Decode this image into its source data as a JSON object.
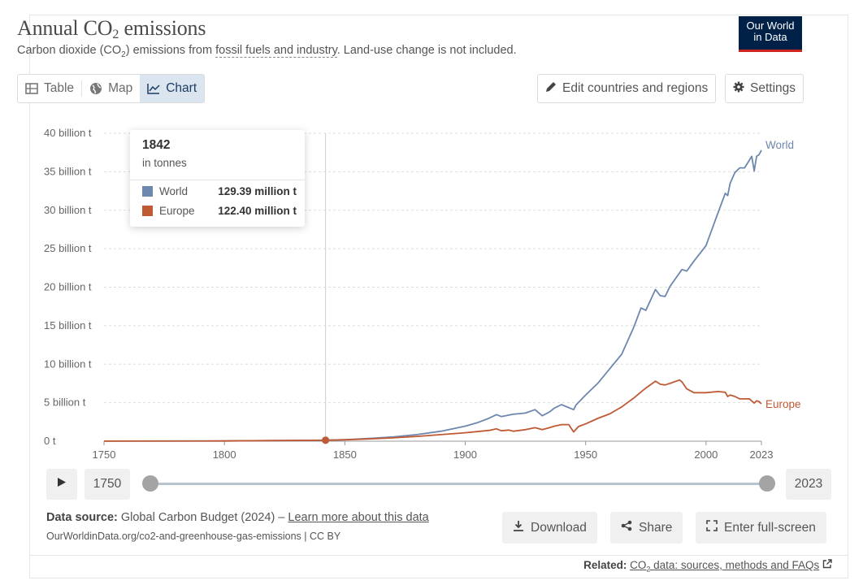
{
  "header": {
    "title_main": "Annual CO",
    "title_sub": "2",
    "title_end": " emissions",
    "subtitle_pre": "Carbon dioxide (CO",
    "subtitle_sub": "2",
    "subtitle_mid": ") emissions from ",
    "subtitle_link": "fossil fuels and industry",
    "subtitle_post": ". Land-use change is not included.",
    "logo_line1": "Our World",
    "logo_line2": "in Data"
  },
  "toolbar": {
    "tabs": [
      {
        "label": "Table",
        "icon": "table-icon"
      },
      {
        "label": "Map",
        "icon": "globe-icon"
      },
      {
        "label": "Chart",
        "icon": "line-chart-icon",
        "active": true
      }
    ],
    "edit_label": "Edit countries and regions",
    "settings_label": "Settings"
  },
  "tooltip": {
    "year": "1842",
    "unit": "in tonnes",
    "rows": [
      {
        "name": "World",
        "value": "129.39 million t",
        "color": "#6d87ad"
      },
      {
        "name": "Europe",
        "value": "122.40 million t",
        "color": "#c05a35"
      }
    ]
  },
  "timeline": {
    "play_icon": "play-icon",
    "start": "1750",
    "end": "2023"
  },
  "footer": {
    "source_label": "Data source:",
    "source_text": " Global Carbon Budget (2024) – ",
    "source_link": "Learn more about this data",
    "url": "OurWorldinData.org/co2-and-greenhouse-gas-emissions | CC BY",
    "download_label": "Download",
    "share_label": "Share",
    "fullscreen_label": "Enter full-screen",
    "related_label": "Related:",
    "related_pre": "CO",
    "related_sub": "2",
    "related_link": " data: sources, methods and FAQs"
  },
  "chart_data": {
    "type": "line",
    "title": "Annual CO₂ emissions",
    "ylabel": "",
    "xlabel": "",
    "xlim": [
      1750,
      2023
    ],
    "ylim": [
      0,
      40000000000
    ],
    "x_ticks": [
      "1750",
      "1800",
      "1850",
      "1900",
      "1950",
      "2000",
      "2023"
    ],
    "y_ticks": [
      "0 t",
      "5 billion t",
      "10 billion t",
      "15 billion t",
      "20 billion t",
      "25 billion t",
      "30 billion t",
      "35 billion t",
      "40 billion t"
    ],
    "y_tick_values": [
      0,
      5000000000,
      10000000000,
      15000000000,
      20000000000,
      25000000000,
      30000000000,
      35000000000,
      40000000000
    ],
    "grid": true,
    "hover_year": 1842,
    "series": [
      {
        "name": "World",
        "color": "#6d87ad",
        "points": [
          [
            1750,
            9000000
          ],
          [
            1800,
            28000000
          ],
          [
            1842,
            129390000
          ],
          [
            1850,
            200000000
          ],
          [
            1860,
            350000000
          ],
          [
            1870,
            550000000
          ],
          [
            1880,
            850000000
          ],
          [
            1890,
            1300000000
          ],
          [
            1900,
            1950000000
          ],
          [
            1905,
            2400000000
          ],
          [
            1910,
            3000000000
          ],
          [
            1913,
            3450000000
          ],
          [
            1915,
            3200000000
          ],
          [
            1920,
            3500000000
          ],
          [
            1925,
            3650000000
          ],
          [
            1929,
            4100000000
          ],
          [
            1932,
            3300000000
          ],
          [
            1935,
            3800000000
          ],
          [
            1937,
            4300000000
          ],
          [
            1940,
            4750000000
          ],
          [
            1945,
            4100000000
          ],
          [
            1946,
            4700000000
          ],
          [
            1950,
            6000000000
          ],
          [
            1955,
            7500000000
          ],
          [
            1960,
            9400000000
          ],
          [
            1965,
            11300000000
          ],
          [
            1970,
            14800000000
          ],
          [
            1973,
            17300000000
          ],
          [
            1975,
            17000000000
          ],
          [
            1979,
            19700000000
          ],
          [
            1981,
            18900000000
          ],
          [
            1983,
            18800000000
          ],
          [
            1985,
            20100000000
          ],
          [
            1990,
            22300000000
          ],
          [
            1992,
            22100000000
          ],
          [
            1995,
            23400000000
          ],
          [
            2000,
            25400000000
          ],
          [
            2005,
            29700000000
          ],
          [
            2008,
            32200000000
          ],
          [
            2009,
            31900000000
          ],
          [
            2010,
            33500000000
          ],
          [
            2012,
            34900000000
          ],
          [
            2014,
            35500000000
          ],
          [
            2016,
            35500000000
          ],
          [
            2019,
            37000000000
          ],
          [
            2020,
            35100000000
          ],
          [
            2021,
            37000000000
          ],
          [
            2022,
            37200000000
          ],
          [
            2023,
            37800000000
          ]
        ]
      },
      {
        "name": "Europe",
        "color": "#c05a35",
        "points": [
          [
            1750,
            9000000
          ],
          [
            1800,
            27000000
          ],
          [
            1842,
            122400000
          ],
          [
            1850,
            180000000
          ],
          [
            1860,
            300000000
          ],
          [
            1870,
            430000000
          ],
          [
            1880,
            620000000
          ],
          [
            1890,
            850000000
          ],
          [
            1900,
            1100000000
          ],
          [
            1905,
            1250000000
          ],
          [
            1910,
            1400000000
          ],
          [
            1913,
            1600000000
          ],
          [
            1915,
            1350000000
          ],
          [
            1918,
            1450000000
          ],
          [
            1920,
            1300000000
          ],
          [
            1925,
            1500000000
          ],
          [
            1929,
            1750000000
          ],
          [
            1932,
            1500000000
          ],
          [
            1935,
            1750000000
          ],
          [
            1937,
            1950000000
          ],
          [
            1940,
            2150000000
          ],
          [
            1943,
            2150000000
          ],
          [
            1945,
            1200000000
          ],
          [
            1947,
            1900000000
          ],
          [
            1950,
            2250000000
          ],
          [
            1955,
            2950000000
          ],
          [
            1960,
            3550000000
          ],
          [
            1965,
            4450000000
          ],
          [
            1970,
            5600000000
          ],
          [
            1973,
            6400000000
          ],
          [
            1975,
            6900000000
          ],
          [
            1979,
            7800000000
          ],
          [
            1981,
            7400000000
          ],
          [
            1983,
            7300000000
          ],
          [
            1985,
            7500000000
          ],
          [
            1989,
            7950000000
          ],
          [
            1990,
            7700000000
          ],
          [
            1992,
            6800000000
          ],
          [
            1995,
            6300000000
          ],
          [
            2000,
            6300000000
          ],
          [
            2005,
            6450000000
          ],
          [
            2008,
            6350000000
          ],
          [
            2009,
            5800000000
          ],
          [
            2010,
            6000000000
          ],
          [
            2012,
            5800000000
          ],
          [
            2014,
            5500000000
          ],
          [
            2018,
            5500000000
          ],
          [
            2020,
            4950000000
          ],
          [
            2021,
            5250000000
          ],
          [
            2022,
            5150000000
          ],
          [
            2023,
            4850000000
          ]
        ]
      }
    ]
  }
}
